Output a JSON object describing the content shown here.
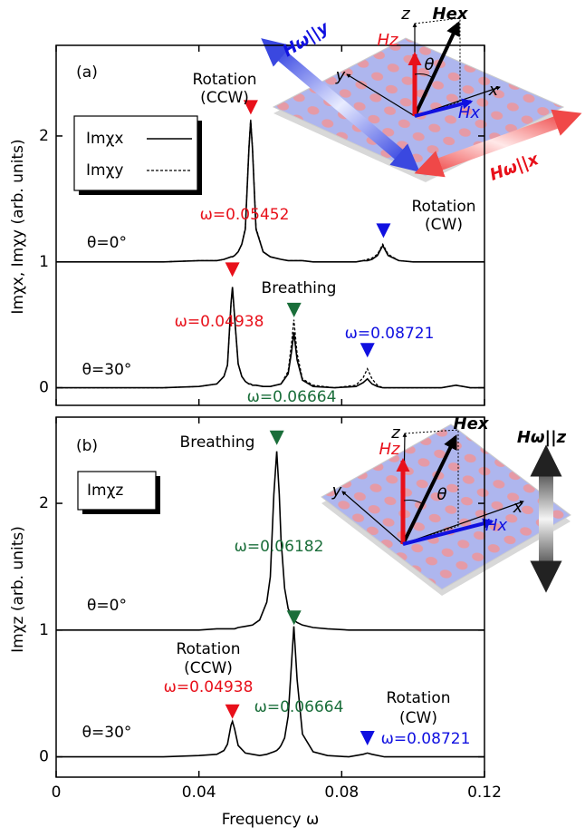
{
  "chart_data": [
    {
      "type": "line",
      "panel_label": "(a)",
      "ylabel": "Imχx, Imχy (arb. units)",
      "xlim": [
        0,
        0.12
      ],
      "ylim": [
        -0.14,
        2.72
      ],
      "xticks": [
        0,
        0.04,
        0.08,
        0.12
      ],
      "yticks": [
        0,
        1,
        2
      ],
      "legend": [
        {
          "name": "Imχx",
          "dash": false
        },
        {
          "name": "Imχy",
          "dash": true
        }
      ],
      "x": [
        0,
        0.01,
        0.02,
        0.03,
        0.04,
        0.045,
        0.047,
        0.048,
        0.049,
        0.0494,
        0.05,
        0.051,
        0.052,
        0.053,
        0.054,
        0.0545,
        0.055,
        0.056,
        0.058,
        0.06,
        0.063,
        0.065,
        0.066,
        0.0666,
        0.0675,
        0.069,
        0.072,
        0.078,
        0.084,
        0.086,
        0.0872,
        0.0885,
        0.09,
        0.0915,
        0.093,
        0.096,
        0.1,
        0.108,
        0.112,
        0.116,
        0.12
      ],
      "curves": [
        {
          "label": "θ=0°",
          "series": [
            {
              "dash": false,
              "values": [
                1,
                1,
                1,
                1,
                1.01,
                1.01,
                1.02,
                1.03,
                1.04,
                1.04,
                1.05,
                1.08,
                1.14,
                1.26,
                1.9,
                2.12,
                1.9,
                1.26,
                1.08,
                1.04,
                1.02,
                1.01,
                1.01,
                1.01,
                1.01,
                1.01,
                1,
                1,
                1,
                1.01,
                1.01,
                1.02,
                1.05,
                1.13,
                1.05,
                1.01,
                1,
                1,
                1,
                1,
                1
              ]
            },
            {
              "dash": true,
              "values": [
                1,
                1,
                1,
                1,
                1.01,
                1.01,
                1.02,
                1.03,
                1.04,
                1.04,
                1.05,
                1.08,
                1.14,
                1.27,
                1.91,
                2.13,
                1.91,
                1.27,
                1.08,
                1.04,
                1.02,
                1.01,
                1.01,
                1.01,
                1.01,
                1.01,
                1,
                1,
                1,
                1.01,
                1.02,
                1.03,
                1.06,
                1.14,
                1.06,
                1.01,
                1,
                1,
                1,
                1,
                1
              ]
            }
          ]
        },
        {
          "label": "θ=30°",
          "series": [
            {
              "dash": false,
              "values": [
                0,
                0,
                0,
                0,
                0.01,
                0.03,
                0.09,
                0.18,
                0.67,
                0.8,
                0.56,
                0.19,
                0.09,
                0.05,
                0.03,
                0.03,
                0.02,
                0.02,
                0.01,
                0.01,
                0.03,
                0.11,
                0.3,
                0.44,
                0.22,
                0.06,
                0.01,
                0,
                0.01,
                0.04,
                0.07,
                0.03,
                0.01,
                0,
                0,
                0,
                0,
                0,
                0.02,
                0,
                0
              ]
            },
            {
              "dash": true,
              "values": [
                0,
                0,
                0,
                0,
                0.01,
                0.03,
                0.09,
                0.18,
                0.66,
                0.79,
                0.55,
                0.19,
                0.09,
                0.05,
                0.03,
                0.03,
                0.02,
                0.02,
                0.01,
                0.01,
                0.03,
                0.13,
                0.37,
                0.54,
                0.27,
                0.07,
                0.02,
                0,
                0.02,
                0.08,
                0.15,
                0.07,
                0.02,
                0,
                0,
                0,
                0,
                0,
                0.02,
                0,
                0
              ]
            }
          ]
        }
      ],
      "markers": [
        {
          "x": 0.05452,
          "y": 2.17,
          "color": "#e8101a"
        },
        {
          "x": 0.0917,
          "y": 1.19,
          "color": "#1010e0"
        },
        {
          "x": 0.04938,
          "y": 0.88,
          "color": "#e8101a"
        },
        {
          "x": 0.06664,
          "y": 0.56,
          "color": "#1a6e3a"
        },
        {
          "x": 0.08721,
          "y": 0.24,
          "color": "#1010e0"
        }
      ],
      "annotations": [
        {
          "text": [
            "Rotation",
            "(CCW)"
          ]
        },
        {
          "text": [
            "ω=0.05452"
          ],
          "color": "#e8101a"
        },
        {
          "text": [
            "Rotation",
            "(CW)"
          ]
        },
        {
          "text": [
            "Breathing"
          ]
        },
        {
          "text": [
            "ω=0.04938"
          ],
          "color": "#e8101a"
        },
        {
          "text": [
            "ω=0.08721"
          ],
          "color": "#1010e0"
        },
        {
          "text": [
            "ω=0.06664"
          ],
          "color": "#1a6e3a"
        }
      ],
      "inset_labels": [
        "Hω||y",
        "Hω||x",
        "Hex",
        "Hz",
        "Hx",
        "z",
        "y",
        "x",
        "θ"
      ]
    },
    {
      "type": "line",
      "panel_label": "(b)",
      "ylabel": "Imχz (arb. units)",
      "xlabel": "Frequency ω",
      "xlim": [
        0,
        0.12
      ],
      "ylim": [
        -0.16,
        2.68
      ],
      "xticks": [
        0,
        0.04,
        0.08,
        0.12
      ],
      "yticks": [
        0,
        1,
        2
      ],
      "legend": [
        {
          "name": "Imχz"
        }
      ],
      "x": [
        0,
        0.01,
        0.02,
        0.03,
        0.04,
        0.045,
        0.047,
        0.048,
        0.049,
        0.0494,
        0.05,
        0.051,
        0.053,
        0.055,
        0.057,
        0.059,
        0.06,
        0.061,
        0.0618,
        0.0625,
        0.063,
        0.064,
        0.065,
        0.066,
        0.0666,
        0.0675,
        0.069,
        0.072,
        0.076,
        0.082,
        0.086,
        0.0872,
        0.0885,
        0.092,
        0.1,
        0.11,
        0.12
      ],
      "curves": [
        {
          "label": "θ=0°",
          "series": [
            {
              "dash": false,
              "values": [
                1,
                1,
                1,
                1,
                1,
                1.01,
                1.01,
                1.01,
                1.01,
                1.01,
                1.01,
                1.02,
                1.03,
                1.04,
                1.08,
                1.22,
                1.42,
                2.07,
                2.41,
                2.07,
                1.72,
                1.33,
                1.17,
                1.11,
                1.08,
                1.06,
                1.04,
                1.02,
                1.01,
                1,
                1,
                1,
                1,
                1,
                1,
                1,
                1
              ]
            }
          ]
        },
        {
          "label": "θ=30°",
          "series": [
            {
              "dash": false,
              "values": [
                0,
                0,
                0,
                0,
                0.01,
                0.02,
                0.05,
                0.1,
                0.25,
                0.28,
                0.22,
                0.09,
                0.03,
                0.02,
                0.01,
                0.02,
                0.03,
                0.04,
                0.05,
                0.07,
                0.09,
                0.15,
                0.32,
                0.77,
                1.03,
                0.61,
                0.18,
                0.04,
                0.01,
                0,
                0.02,
                0.03,
                0.02,
                0,
                0,
                0,
                0
              ]
            }
          ]
        }
      ],
      "markers": [
        {
          "x": 0.06182,
          "y": 2.46,
          "color": "#1a6e3a"
        },
        {
          "x": 0.06664,
          "y": 1.04,
          "color": "#1a6e3a"
        },
        {
          "x": 0.04938,
          "y": 0.3,
          "color": "#e8101a"
        },
        {
          "x": 0.08721,
          "y": 0.09,
          "color": "#1010e0"
        }
      ],
      "annotations": [
        {
          "text": [
            "Breathing"
          ]
        },
        {
          "text": [
            "ω=0.06182"
          ],
          "color": "#1a6e3a"
        },
        {
          "text": [
            "Rotation",
            "(CCW)"
          ]
        },
        {
          "text": [
            "ω=0.04938"
          ],
          "color": "#e8101a"
        },
        {
          "text": [
            "ω=0.06664"
          ],
          "color": "#1a6e3a"
        },
        {
          "text": [
            "Rotation",
            "(CW)"
          ]
        },
        {
          "text": [
            "ω=0.08721"
          ],
          "color": "#1010e0"
        }
      ],
      "inset_labels": [
        "Hω||z",
        "Hex",
        "Hz",
        "Hx",
        "z",
        "y",
        "x",
        "θ"
      ]
    }
  ]
}
